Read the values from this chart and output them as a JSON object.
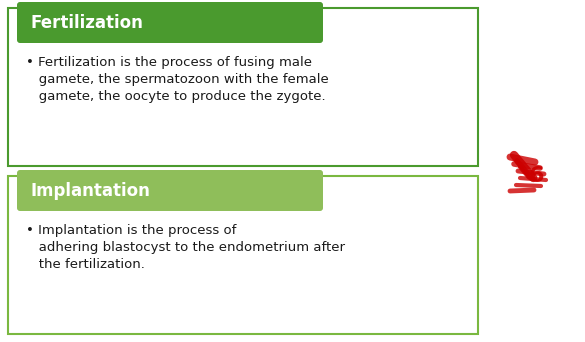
{
  "title1": "Fertilization",
  "title2": "Implantation",
  "text1_line1": "• Fertilization is the process of fusing male",
  "text1_line2": "   gamete, the spermatozoon with the female",
  "text1_line3": "   gamete, the oocyte to produce the zygote.",
  "text2_line1": "• Implantation is the process of",
  "text2_line2": "   adhering blastocyst to the endometrium after",
  "text2_line3": "   the fertilization.",
  "header1_color": "#4a9a2e",
  "header1_color_light": "#6ab840",
  "header2_color": "#8fbe5a",
  "header2_color_light": "#aad470",
  "box_border_color": "#4a9a2e",
  "box2_border_color": "#7ab840",
  "box_bg_color": "#ffffff",
  "body_text_color": "#1a1a1a",
  "background_color": "#ffffff"
}
